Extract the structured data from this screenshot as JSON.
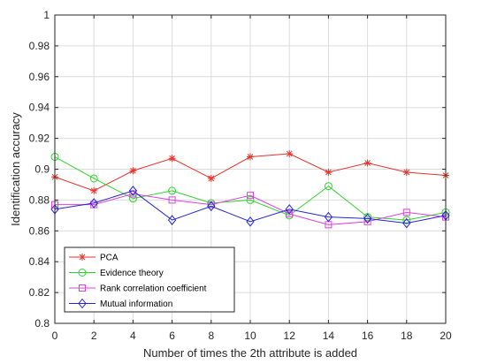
{
  "chart_data": {
    "type": "line",
    "xlabel": "Number of times the 2th attribute is added",
    "ylabel": "Identification accuracy",
    "x": [
      0,
      2,
      4,
      6,
      8,
      10,
      12,
      14,
      16,
      18,
      20
    ],
    "xlim": [
      0,
      20
    ],
    "ylim": [
      0.8,
      1
    ],
    "xticks": [
      "0",
      "2",
      "4",
      "6",
      "8",
      "10",
      "12",
      "14",
      "16",
      "18",
      "20"
    ],
    "yticks": [
      "0.8",
      "0.82",
      "0.84",
      "0.86",
      "0.88",
      "0.9",
      "0.92",
      "0.94",
      "0.96",
      "0.98",
      "1"
    ],
    "grid": true,
    "legend_position": "bottom-left",
    "series": [
      {
        "name": "PCA",
        "color": "#e8322a",
        "marker": "star",
        "values": [
          0.895,
          0.886,
          0.899,
          0.907,
          0.894,
          0.908,
          0.91,
          0.898,
          0.904,
          0.898,
          0.896
        ]
      },
      {
        "name": "Evidence theory",
        "color": "#2fd32f",
        "marker": "circle",
        "values": [
          0.908,
          0.894,
          0.881,
          0.886,
          0.878,
          0.88,
          0.87,
          0.889,
          0.869,
          0.867,
          0.872
        ]
      },
      {
        "name": "Rank correlation coefficient",
        "color": "#e040e0",
        "marker": "square",
        "values": [
          0.877,
          0.877,
          0.884,
          0.88,
          0.877,
          0.883,
          0.871,
          0.864,
          0.866,
          0.872,
          0.869
        ]
      },
      {
        "name": "Mutual information",
        "color": "#2424d8",
        "marker": "diamond",
        "values": [
          0.874,
          0.878,
          0.886,
          0.867,
          0.876,
          0.866,
          0.874,
          0.869,
          0.868,
          0.865,
          0.87
        ]
      }
    ]
  }
}
